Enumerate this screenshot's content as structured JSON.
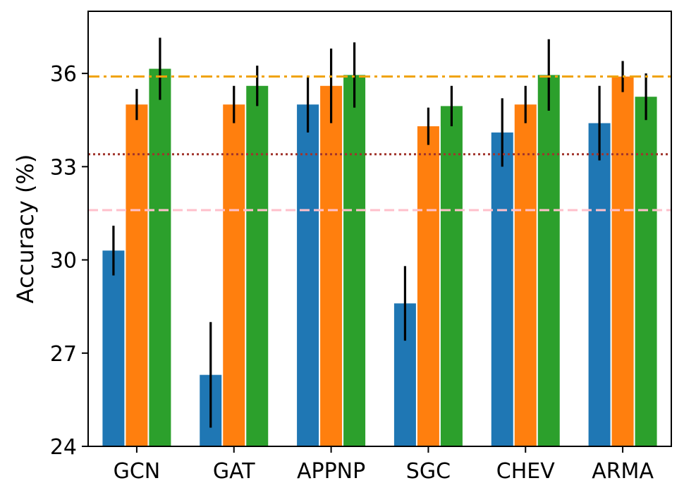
{
  "chart_data": {
    "type": "bar",
    "categories": [
      "GCN",
      "GAT",
      "APPNP",
      "SGC",
      "CHEV",
      "ARMA"
    ],
    "ylabel": "Accuracy (%)",
    "xlabel": "",
    "ylim": [
      24,
      38
    ],
    "yticks": [
      24,
      27,
      30,
      33,
      36
    ],
    "yticks_text": [
      "24",
      "27",
      "30",
      "33",
      "36"
    ],
    "grid": false,
    "series": [
      {
        "color": "#1f77b4",
        "values": [
          30.3,
          26.3,
          35.0,
          28.6,
          34.1,
          34.4
        ],
        "errors": [
          0.8,
          1.7,
          0.9,
          1.2,
          1.1,
          1.2
        ]
      },
      {
        "color": "#ff7f0e",
        "values": [
          35.0,
          35.0,
          35.6,
          34.3,
          35.0,
          35.9
        ],
        "errors": [
          0.5,
          0.6,
          1.2,
          0.6,
          0.6,
          0.5
        ]
      },
      {
        "color": "#2ca02c",
        "values": [
          36.15,
          35.6,
          35.95,
          34.95,
          35.95,
          35.25
        ],
        "errors": [
          1.0,
          0.65,
          1.05,
          0.65,
          1.15,
          0.75
        ]
      }
    ],
    "reference_lines": [
      {
        "value": 35.9,
        "color": "#f0a30a",
        "style": "dashdot"
      },
      {
        "value": 33.4,
        "color": "#a0342c",
        "style": "dotted"
      },
      {
        "value": 31.6,
        "color": "#ffc0cb",
        "style": "dashed"
      }
    ]
  }
}
